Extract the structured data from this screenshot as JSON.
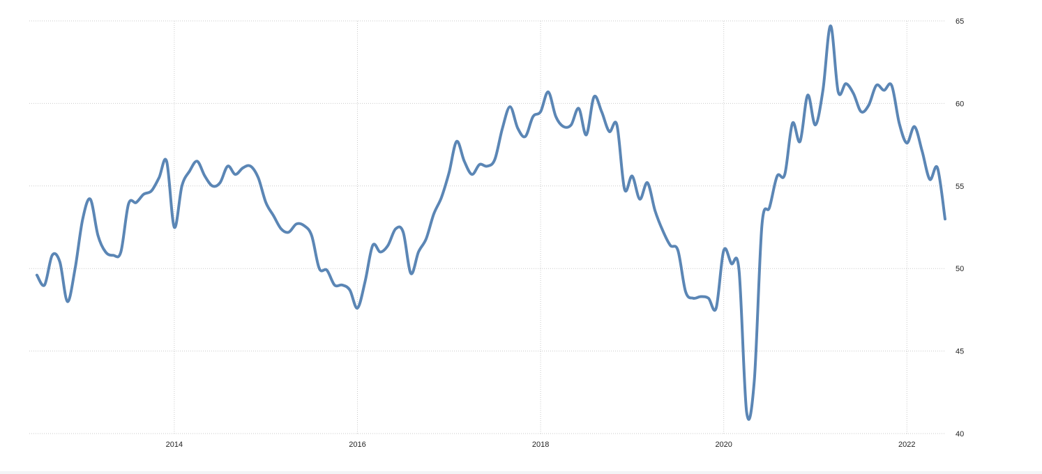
{
  "chart_data": {
    "type": "line",
    "title": "",
    "xlabel": "",
    "ylabel": "",
    "xlim": [
      "2012-06",
      "2022-06"
    ],
    "ylim": [
      40,
      65
    ],
    "y_axis_side": "right",
    "grid": true,
    "legend": "none",
    "x_ticks": [
      "2014",
      "2016",
      "2018",
      "2020",
      "2022"
    ],
    "y_ticks": [
      40,
      45,
      50,
      55,
      60,
      65
    ],
    "series": [
      {
        "color": "#5b86b5",
        "x": [
          "2012-07",
          "2012-08",
          "2012-09",
          "2012-10",
          "2012-11",
          "2012-12",
          "2013-01",
          "2013-02",
          "2013-03",
          "2013-04",
          "2013-05",
          "2013-06",
          "2013-07",
          "2013-08",
          "2013-09",
          "2013-10",
          "2013-11",
          "2013-12",
          "2014-01",
          "2014-02",
          "2014-03",
          "2014-04",
          "2014-05",
          "2014-06",
          "2014-07",
          "2014-08",
          "2014-09",
          "2014-10",
          "2014-11",
          "2014-12",
          "2015-01",
          "2015-02",
          "2015-03",
          "2015-04",
          "2015-05",
          "2015-06",
          "2015-07",
          "2015-08",
          "2015-09",
          "2015-10",
          "2015-11",
          "2015-12",
          "2016-01",
          "2016-02",
          "2016-03",
          "2016-04",
          "2016-05",
          "2016-06",
          "2016-07",
          "2016-08",
          "2016-09",
          "2016-10",
          "2016-11",
          "2016-12",
          "2017-01",
          "2017-02",
          "2017-03",
          "2017-04",
          "2017-05",
          "2017-06",
          "2017-07",
          "2017-08",
          "2017-09",
          "2017-10",
          "2017-11",
          "2017-12",
          "2018-01",
          "2018-02",
          "2018-03",
          "2018-04",
          "2018-05",
          "2018-06",
          "2018-07",
          "2018-08",
          "2018-09",
          "2018-10",
          "2018-11",
          "2018-12",
          "2019-01",
          "2019-02",
          "2019-03",
          "2019-04",
          "2019-05",
          "2019-06",
          "2019-07",
          "2019-08",
          "2019-09",
          "2019-10",
          "2019-11",
          "2019-12",
          "2020-01",
          "2020-02",
          "2020-03",
          "2020-04",
          "2020-05",
          "2020-06",
          "2020-07",
          "2020-08",
          "2020-09",
          "2020-10",
          "2020-11",
          "2020-12",
          "2021-01",
          "2021-02",
          "2021-03",
          "2021-04",
          "2021-05",
          "2021-06",
          "2021-07",
          "2021-08",
          "2021-09",
          "2021-10",
          "2021-11",
          "2021-12",
          "2022-01",
          "2022-02",
          "2022-03",
          "2022-04",
          "2022-05",
          "2022-06"
        ],
        "values": [
          49.6,
          49.0,
          50.8,
          50.4,
          48.0,
          50.0,
          53.0,
          54.2,
          52.0,
          51.0,
          50.8,
          51.0,
          53.9,
          54.0,
          54.5,
          54.7,
          55.5,
          56.5,
          52.5,
          55.0,
          55.9,
          56.5,
          55.6,
          55.0,
          55.2,
          56.2,
          55.7,
          56.1,
          56.2,
          55.5,
          54.0,
          53.2,
          52.4,
          52.2,
          52.7,
          52.6,
          52.0,
          50.0,
          49.9,
          49.0,
          49.0,
          48.7,
          47.6,
          49.2,
          51.4,
          51.0,
          51.4,
          52.4,
          52.2,
          49.7,
          51.0,
          51.8,
          53.3,
          54.3,
          55.8,
          57.7,
          56.5,
          55.7,
          56.3,
          56.2,
          56.6,
          58.5,
          59.8,
          58.5,
          58.0,
          59.2,
          59.5,
          60.7,
          59.2,
          58.6,
          58.7,
          59.7,
          58.1,
          60.4,
          59.5,
          58.3,
          58.7,
          54.8,
          55.6,
          54.2,
          55.2,
          53.5,
          52.3,
          51.4,
          51.1,
          48.6,
          48.2,
          48.3,
          48.2,
          47.6,
          51.1,
          50.3,
          49.9,
          41.3,
          43.2,
          52.6,
          53.7,
          55.6,
          55.7,
          58.8,
          57.7,
          60.5,
          58.7,
          60.8,
          64.7,
          60.7,
          61.2,
          60.6,
          59.5,
          59.9,
          61.1,
          60.8,
          61.1,
          58.8,
          57.6,
          58.6,
          57.1,
          55.4,
          56.1,
          53.0
        ]
      }
    ]
  }
}
